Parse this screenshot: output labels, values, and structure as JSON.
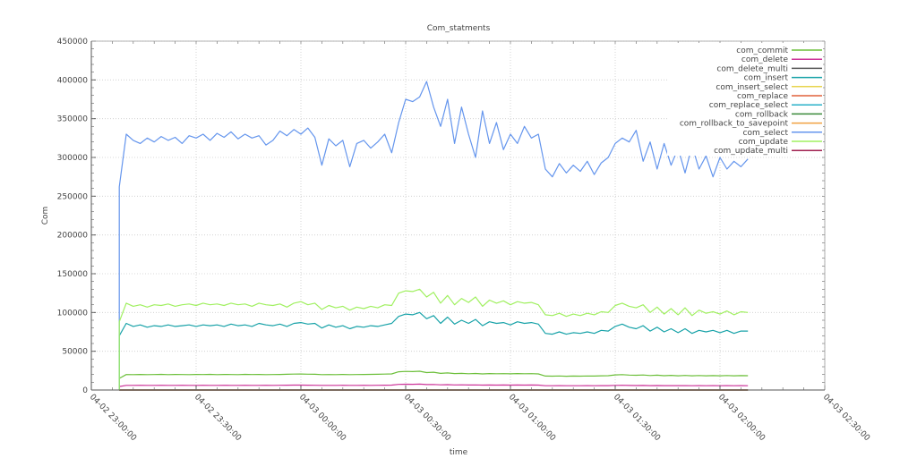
{
  "chart_data": {
    "type": "line",
    "title": "Com_statments",
    "xlabel": "time",
    "ylabel": "Com",
    "ylim": [
      0,
      450000
    ],
    "yticks": [
      "0",
      "50000",
      "100000",
      "150000",
      "200000",
      "250000",
      "300000",
      "350000",
      "400000",
      "450000"
    ],
    "xlim": [
      "04-02 23:00:00",
      "04-03 02:30:00"
    ],
    "xticks": [
      "04-02 23:00:00",
      "04-02 23:30:00",
      "04-03 00:00:00",
      "04-03 00:30:00",
      "04-03 01:00:00",
      "04-03 01:30:00",
      "04-03 02:00:00",
      "04-03 02:30:00"
    ],
    "grid": true,
    "legend_position": "top-right",
    "x": [
      "04-02 23:08",
      "04-02 23:10",
      "04-02 23:12",
      "04-02 23:14",
      "04-02 23:16",
      "04-02 23:18",
      "04-02 23:20",
      "04-02 23:22",
      "04-02 23:24",
      "04-02 23:26",
      "04-02 23:28",
      "04-02 23:30",
      "04-02 23:32",
      "04-02 23:34",
      "04-02 23:36",
      "04-02 23:38",
      "04-02 23:40",
      "04-02 23:42",
      "04-02 23:44",
      "04-02 23:46",
      "04-02 23:48",
      "04-02 23:50",
      "04-02 23:52",
      "04-02 23:54",
      "04-02 23:56",
      "04-02 23:58",
      "04-03 00:00",
      "04-03 00:02",
      "04-03 00:04",
      "04-03 00:06",
      "04-03 00:08",
      "04-03 00:10",
      "04-03 00:12",
      "04-03 00:14",
      "04-03 00:16",
      "04-03 00:18",
      "04-03 00:20",
      "04-03 00:22",
      "04-03 00:24",
      "04-03 00:26",
      "04-03 00:28",
      "04-03 00:30",
      "04-03 00:32",
      "04-03 00:34",
      "04-03 00:36",
      "04-03 00:38",
      "04-03 00:40",
      "04-03 00:42",
      "04-03 00:44",
      "04-03 00:46",
      "04-03 00:48",
      "04-03 00:50",
      "04-03 00:52",
      "04-03 00:54",
      "04-03 00:56",
      "04-03 00:58",
      "04-03 01:00",
      "04-03 01:02",
      "04-03 01:04",
      "04-03 01:06",
      "04-03 01:08",
      "04-03 01:10",
      "04-03 01:12",
      "04-03 01:14",
      "04-03 01:16",
      "04-03 01:18",
      "04-03 01:20",
      "04-03 01:22",
      "04-03 01:24",
      "04-03 01:26",
      "04-03 01:28",
      "04-03 01:30",
      "04-03 01:32",
      "04-03 01:34",
      "04-03 01:36",
      "04-03 01:38",
      "04-03 01:40",
      "04-03 01:42",
      "04-03 01:44",
      "04-03 01:46",
      "04-03 01:48",
      "04-03 01:50",
      "04-03 01:52",
      "04-03 01:54",
      "04-03 01:56",
      "04-03 01:58",
      "04-03 02:00",
      "04-03 02:02",
      "04-03 02:04",
      "04-03 02:06",
      "04-03 02:08"
    ],
    "series": [
      {
        "name": "com_commit",
        "color": "#6cbf3a",
        "values": [
          15000,
          20000,
          19800,
          20100,
          19900,
          20000,
          20200,
          19900,
          20100,
          20000,
          19800,
          20100,
          20000,
          20200,
          19900,
          20100,
          20000,
          19900,
          20200,
          20000,
          20100,
          19900,
          20000,
          20100,
          20300,
          20500,
          20700,
          20400,
          20300,
          19800,
          20000,
          19900,
          20100,
          19800,
          20000,
          20100,
          20200,
          20300,
          20500,
          20800,
          23500,
          24000,
          23800,
          24200,
          22500,
          23000,
          21500,
          22000,
          21200,
          21500,
          21000,
          21300,
          20800,
          21200,
          21000,
          21100,
          20900,
          21200,
          21000,
          21100,
          20800,
          18000,
          17900,
          18100,
          17800,
          18000,
          17900,
          18100,
          18000,
          18300,
          18500,
          19500,
          19800,
          19300,
          19000,
          19400,
          18700,
          19100,
          18500,
          18900,
          18400,
          18800,
          18300,
          18700,
          18400,
          18600,
          18300,
          18700,
          18400,
          18600,
          18500
        ]
      },
      {
        "name": "com_delete",
        "color": "#cc3399",
        "values": [
          4500,
          6000,
          6000,
          6100,
          6000,
          6000,
          6100,
          6000,
          6000,
          6100,
          6000,
          6000,
          6100,
          6000,
          6000,
          6100,
          6000,
          6000,
          6100,
          6000,
          6000,
          6100,
          6000,
          6100,
          6200,
          6300,
          6300,
          6200,
          6100,
          6000,
          6000,
          6000,
          6100,
          6000,
          6000,
          6100,
          6000,
          6100,
          6200,
          6300,
          7300,
          7500,
          7400,
          7600,
          7000,
          7200,
          6700,
          6900,
          6600,
          6700,
          6500,
          6600,
          6400,
          6500,
          6400,
          6500,
          6400,
          6500,
          6400,
          6500,
          6300,
          5500,
          5500,
          5600,
          5500,
          5500,
          5500,
          5600,
          5500,
          5600,
          5700,
          6000,
          6100,
          5900,
          5800,
          5900,
          5700,
          5800,
          5600,
          5700,
          5600,
          5700,
          5500,
          5600,
          5500,
          5600,
          5500,
          5600,
          5500,
          5600,
          5500
        ]
      },
      {
        "name": "com_delete_multi",
        "color": "#555555",
        "values": 0
      },
      {
        "name": "com_insert",
        "color": "#17a2a8",
        "values": [
          70000,
          86000,
          82000,
          84000,
          81000,
          83000,
          82000,
          84000,
          82000,
          83000,
          84000,
          82000,
          84000,
          83000,
          84000,
          82000,
          85000,
          83000,
          84000,
          82000,
          86000,
          84000,
          83000,
          85000,
          82000,
          86000,
          87000,
          85000,
          86000,
          80000,
          84000,
          81000,
          83000,
          79000,
          82000,
          81000,
          83000,
          82000,
          84000,
          86000,
          95000,
          98000,
          97000,
          100000,
          92000,
          96000,
          86000,
          94000,
          85000,
          90000,
          86000,
          91000,
          83000,
          88000,
          86000,
          87000,
          84000,
          88000,
          86000,
          87000,
          85000,
          73000,
          72000,
          75000,
          72000,
          74000,
          73000,
          75000,
          73000,
          77000,
          76000,
          82000,
          85000,
          81000,
          79000,
          83000,
          76000,
          81000,
          75000,
          79000,
          74000,
          79000,
          73000,
          77000,
          75000,
          77000,
          74000,
          77000,
          73000,
          76000,
          76000
        ]
      },
      {
        "name": "com_insert_select",
        "color": "#e8d44d",
        "values": 0
      },
      {
        "name": "com_replace",
        "color": "#e0603a",
        "values": 0
      },
      {
        "name": "com_replace_select",
        "color": "#2ab0c8",
        "values": 0
      },
      {
        "name": "com_rollback",
        "color": "#3a8a3a",
        "values": 0
      },
      {
        "name": "com_rollback_to_savepoint",
        "color": "#f0a040",
        "values": 0
      },
      {
        "name": "com_select",
        "color": "#6495ed",
        "values": [
          262000,
          330000,
          322000,
          318000,
          325000,
          320000,
          327000,
          322000,
          326000,
          318000,
          328000,
          325000,
          330000,
          322000,
          331000,
          326000,
          333000,
          324000,
          330000,
          325000,
          328000,
          316000,
          322000,
          334000,
          328000,
          336000,
          330000,
          338000,
          326000,
          290000,
          324000,
          315000,
          322000,
          288000,
          318000,
          322000,
          312000,
          320000,
          330000,
          306000,
          345000,
          375000,
          372000,
          378000,
          398000,
          365000,
          340000,
          375000,
          318000,
          365000,
          330000,
          300000,
          360000,
          318000,
          345000,
          310000,
          330000,
          318000,
          340000,
          325000,
          330000,
          285000,
          275000,
          292000,
          280000,
          290000,
          282000,
          295000,
          278000,
          293000,
          300000,
          318000,
          325000,
          320000,
          335000,
          295000,
          320000,
          285000,
          318000,
          290000,
          312000,
          280000,
          315000,
          285000,
          302000,
          275000,
          300000,
          285000,
          295000,
          288000,
          298000
        ]
      },
      {
        "name": "com_update",
        "color": "#a0f060",
        "values": [
          88000,
          112000,
          108000,
          110000,
          107000,
          110000,
          109000,
          111000,
          108000,
          110000,
          111000,
          109000,
          112000,
          110000,
          111000,
          109000,
          112000,
          110000,
          111000,
          108000,
          112000,
          110000,
          109000,
          111000,
          107000,
          112000,
          114000,
          110000,
          112000,
          104000,
          109000,
          106000,
          108000,
          103000,
          107000,
          105000,
          108000,
          106000,
          110000,
          109000,
          125000,
          128000,
          127000,
          130000,
          120000,
          126000,
          112000,
          122000,
          110000,
          118000,
          113000,
          120000,
          108000,
          116000,
          112000,
          115000,
          110000,
          114000,
          112000,
          113000,
          110000,
          97000,
          96000,
          99000,
          95000,
          98000,
          96000,
          99000,
          97000,
          101000,
          100000,
          109000,
          112000,
          108000,
          106000,
          110000,
          100000,
          107000,
          98000,
          105000,
          97000,
          106000,
          96000,
          103000,
          99000,
          101000,
          98000,
          102000,
          97000,
          101000,
          100000
        ]
      },
      {
        "name": "com_update_multi",
        "color": "#a02050",
        "values": 0
      }
    ]
  }
}
